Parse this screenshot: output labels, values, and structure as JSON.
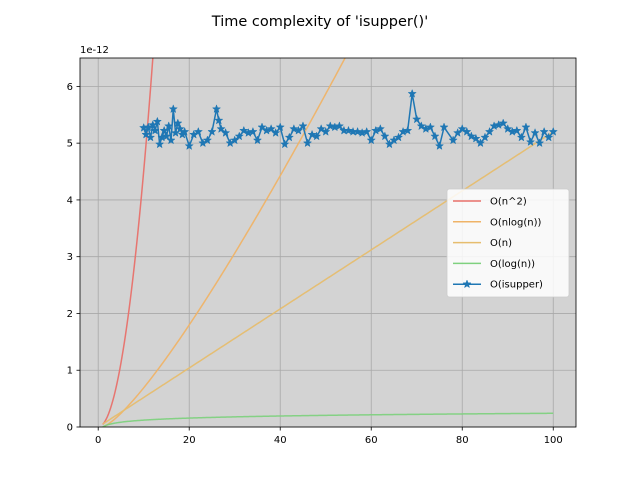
{
  "chart_data": {
    "type": "line",
    "title": "Time complexity of 'isupper()'",
    "xlabel": "",
    "ylabel": "",
    "y_offset_label": "1e-12",
    "xlim": [
      -4.0,
      105.0
    ],
    "ylim": [
      0,
      6.5
    ],
    "xticks": [
      0,
      20,
      40,
      60,
      80,
      100
    ],
    "yticks": [
      0,
      1,
      2,
      3,
      4,
      5,
      6
    ],
    "grid": true,
    "legend_position": "center-right",
    "background_color": "#d3d3d3",
    "series": [
      {
        "name": "O(n^2)",
        "kind": "curve",
        "formula": "n^2",
        "scale": 4.51e-14,
        "n_range": [
          1,
          100
        ],
        "color": "#e8706a"
      },
      {
        "name": "O(nlog(n))",
        "kind": "curve",
        "formula": "nlogn",
        "scale": 3e-14,
        "n_range": [
          1,
          100
        ],
        "color": "#efb367"
      },
      {
        "name": "O(n)",
        "kind": "curve",
        "formula": "n",
        "scale": 5.2e-14,
        "n_range": [
          1,
          100
        ],
        "color": "#e6bd6e"
      },
      {
        "name": "O(log(n))",
        "kind": "curve",
        "formula": "logn",
        "scale": 5.25e-14,
        "n_range": [
          1,
          100
        ],
        "color": "#7fd17f"
      },
      {
        "name": "O(isupper)",
        "kind": "measured",
        "marker": "star",
        "color": "#1f77b4",
        "x": [
          10,
          10.5,
          11,
          11.5,
          12,
          12.5,
          13,
          13.5,
          14,
          14.5,
          15,
          15.5,
          16,
          16.5,
          17,
          17.5,
          18,
          18.5,
          19,
          20,
          21,
          22,
          23,
          24,
          25,
          26,
          26.5,
          27,
          28,
          29,
          30,
          31,
          32,
          33,
          34,
          35,
          36,
          37,
          38,
          39,
          40,
          41,
          42,
          43,
          44,
          45,
          46,
          47,
          48,
          49,
          50,
          51,
          52,
          53,
          54,
          55,
          56,
          57,
          58,
          59,
          60,
          61,
          62,
          63,
          64,
          65,
          66,
          67,
          68,
          69,
          70,
          71,
          72,
          73,
          74,
          75,
          76,
          78,
          79,
          80,
          81,
          82,
          83,
          84,
          85,
          86,
          87,
          88,
          89,
          90,
          91,
          92,
          93,
          94,
          95,
          96,
          97,
          98,
          99,
          100
        ],
        "y": [
          5.27,
          5.15,
          5.28,
          5.1,
          5.32,
          5.22,
          5.38,
          4.98,
          5.1,
          5.22,
          5.12,
          5.3,
          5.05,
          5.6,
          5.18,
          5.35,
          5.25,
          5.15,
          5.2,
          4.95,
          5.15,
          5.2,
          5.0,
          5.05,
          5.2,
          5.6,
          5.4,
          5.25,
          5.18,
          5.0,
          5.05,
          5.12,
          5.22,
          5.18,
          5.2,
          5.05,
          5.28,
          5.22,
          5.25,
          5.18,
          5.28,
          4.98,
          5.1,
          5.25,
          5.22,
          5.3,
          5.0,
          5.15,
          5.12,
          5.25,
          5.2,
          5.3,
          5.28,
          5.3,
          5.22,
          5.22,
          5.2,
          5.2,
          5.18,
          5.2,
          5.05,
          5.22,
          5.25,
          5.12,
          4.98,
          5.05,
          5.1,
          5.2,
          5.22,
          5.87,
          5.42,
          5.3,
          5.25,
          5.28,
          5.12,
          4.95,
          5.28,
          5.05,
          5.18,
          5.25,
          5.2,
          5.12,
          5.08,
          5.0,
          5.1,
          5.2,
          5.3,
          5.32,
          5.35,
          5.25,
          5.2,
          5.22,
          5.1,
          5.28,
          5.02,
          5.18,
          5.0,
          5.2,
          5.1,
          5.2
        ]
      }
    ]
  }
}
